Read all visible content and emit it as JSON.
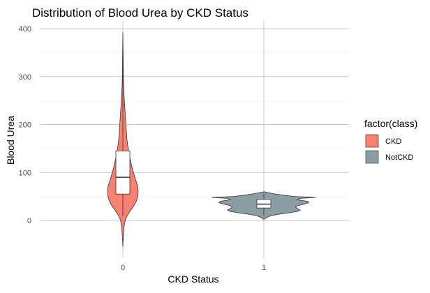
{
  "chart_data": {
    "type": "violin",
    "title": "Distribution of Blood Urea by CKD Status",
    "xlabel": "CKD Status",
    "ylabel": "Blood Urea",
    "categories": [
      "0",
      "1"
    ],
    "ylim": [
      -95,
      415
    ],
    "yticks": [
      0,
      100,
      200,
      300,
      400
    ],
    "grid": true,
    "legend": {
      "title": "factor(class)",
      "placement": "right",
      "entries": [
        {
          "label": "CKD",
          "color": "#fa8072"
        },
        {
          "label": "NotCKD",
          "color": "#8c9ea3"
        }
      ]
    },
    "series": [
      {
        "category": "0",
        "legend_label": "CKD",
        "color": "#fa8072",
        "violin_range": [
          -55,
          392
        ],
        "density_profile": [
          {
            "y": -55,
            "w": 0.0
          },
          {
            "y": -40,
            "w": 0.02
          },
          {
            "y": -25,
            "w": 0.05
          },
          {
            "y": -10,
            "w": 0.09
          },
          {
            "y": 0,
            "w": 0.15
          },
          {
            "y": 10,
            "w": 0.28
          },
          {
            "y": 20,
            "w": 0.48
          },
          {
            "y": 30,
            "w": 0.7
          },
          {
            "y": 40,
            "w": 0.88
          },
          {
            "y": 50,
            "w": 0.97
          },
          {
            "y": 60,
            "w": 1.0
          },
          {
            "y": 70,
            "w": 0.97
          },
          {
            "y": 80,
            "w": 0.88
          },
          {
            "y": 90,
            "w": 0.78
          },
          {
            "y": 100,
            "w": 0.69
          },
          {
            "y": 110,
            "w": 0.6
          },
          {
            "y": 120,
            "w": 0.53
          },
          {
            "y": 130,
            "w": 0.46
          },
          {
            "y": 140,
            "w": 0.4
          },
          {
            "y": 150,
            "w": 0.35
          },
          {
            "y": 160,
            "w": 0.3
          },
          {
            "y": 175,
            "w": 0.25
          },
          {
            "y": 190,
            "w": 0.22
          },
          {
            "y": 200,
            "w": 0.2
          },
          {
            "y": 215,
            "w": 0.17
          },
          {
            "y": 230,
            "w": 0.14
          },
          {
            "y": 245,
            "w": 0.11
          },
          {
            "y": 260,
            "w": 0.08
          },
          {
            "y": 280,
            "w": 0.05
          },
          {
            "y": 300,
            "w": 0.035
          },
          {
            "y": 320,
            "w": 0.025
          },
          {
            "y": 340,
            "w": 0.02
          },
          {
            "y": 360,
            "w": 0.012
          },
          {
            "y": 380,
            "w": 0.006
          },
          {
            "y": 392,
            "w": 0.0
          }
        ],
        "box": {
          "q1": 55,
          "median": 90,
          "q3": 145,
          "whisker_low": 10,
          "whisker_high": 345
        }
      },
      {
        "category": "1",
        "legend_label": "NotCKD",
        "color": "#8c9ea3",
        "violin_range": [
          2,
          60
        ],
        "density_profile": [
          {
            "y": 2,
            "w": 0.0
          },
          {
            "y": 6,
            "w": 0.04
          },
          {
            "y": 10,
            "w": 0.12
          },
          {
            "y": 13,
            "w": 0.25
          },
          {
            "y": 16,
            "w": 0.42
          },
          {
            "y": 19,
            "w": 0.56
          },
          {
            "y": 22,
            "w": 0.6
          },
          {
            "y": 25,
            "w": 0.55
          },
          {
            "y": 28,
            "w": 0.52
          },
          {
            "y": 31,
            "w": 0.56
          },
          {
            "y": 34,
            "w": 0.66
          },
          {
            "y": 37,
            "w": 0.74
          },
          {
            "y": 40,
            "w": 0.72
          },
          {
            "y": 43,
            "w": 0.55
          },
          {
            "y": 46,
            "w": 0.6
          },
          {
            "y": 48,
            "w": 0.86
          },
          {
            "y": 50,
            "w": 0.5
          },
          {
            "y": 53,
            "w": 0.3
          },
          {
            "y": 56,
            "w": 0.15
          },
          {
            "y": 58,
            "w": 0.07
          },
          {
            "y": 60,
            "w": 0.0
          }
        ],
        "box": {
          "q1": 26,
          "median": 34,
          "q3": 44,
          "whisker_low": 10,
          "whisker_high": 56
        }
      }
    ]
  }
}
